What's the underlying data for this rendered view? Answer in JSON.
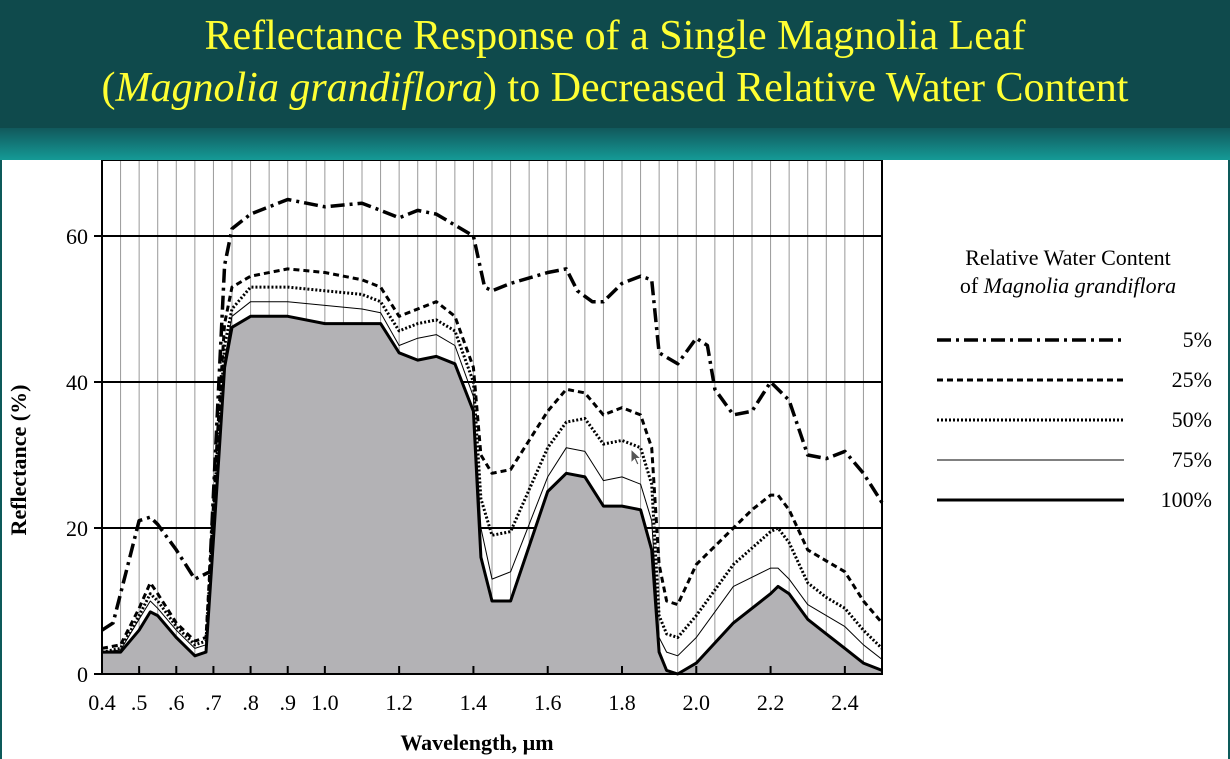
{
  "slide": {
    "title_line1": "Reflectance Response of a Single Magnolia Leaf",
    "title_line2_open": "(",
    "title_line2_italic": "Magnolia grandiflora",
    "title_line2_rest": ") to Decreased Relative Water Content",
    "colors": {
      "title": "#ffff33",
      "background": "#0f4a4c",
      "fill": "#b3b2b5"
    }
  },
  "chart_data": {
    "type": "line",
    "title": "",
    "xlabel": "Wavelength, µm",
    "ylabel": "Reflectance (%)",
    "xlim": [
      0.4,
      2.5
    ],
    "ylim": [
      0,
      69
    ],
    "x_ticks": [
      0.4,
      0.5,
      0.6,
      0.7,
      0.8,
      0.9,
      1.0,
      1.2,
      1.4,
      1.6,
      1.8,
      2.0,
      2.2,
      2.4
    ],
    "x_tick_labels": [
      "0.4",
      ".5",
      ".6",
      ".7",
      ".8",
      ".9",
      "1.0",
      "1.2",
      "1.4",
      "1.6",
      "1.8",
      "2.0",
      "2.2",
      "2.4"
    ],
    "y_ticks": [
      0,
      20,
      40,
      60
    ],
    "y_tick_labels": [
      "0",
      "20",
      "40",
      "60"
    ],
    "grid": {
      "vertical_every_um": 0.05,
      "horizontal": [
        20,
        40,
        60
      ]
    },
    "legend": {
      "title_line1": "Relative Water Content",
      "title_line2_prefix": "of ",
      "title_line2_italic": "Magnolia grandiflora",
      "placement": "right"
    },
    "series": [
      {
        "name": "5%",
        "style": "dash-dot",
        "x": [
          0.4,
          0.43,
          0.47,
          0.5,
          0.53,
          0.55,
          0.6,
          0.65,
          0.69,
          0.71,
          0.73,
          0.75,
          0.8,
          0.9,
          1.0,
          1.1,
          1.15,
          1.2,
          1.25,
          1.3,
          1.35,
          1.4,
          1.43,
          1.45,
          1.5,
          1.6,
          1.65,
          1.68,
          1.72,
          1.75,
          1.8,
          1.85,
          1.88,
          1.9,
          1.95,
          2.0,
          2.03,
          2.05,
          2.1,
          2.15,
          2.2,
          2.25,
          2.3,
          2.35,
          2.4,
          2.45,
          2.5
        ],
        "y": [
          6,
          7,
          15,
          21,
          21.5,
          20.5,
          17,
          13,
          14,
          35,
          56,
          61,
          63,
          65,
          64,
          64.5,
          63.5,
          62.5,
          63.5,
          63,
          61.5,
          60,
          53,
          52.5,
          53.5,
          55,
          55.5,
          52.5,
          51,
          51,
          53.5,
          54.5,
          54,
          44,
          42.5,
          46,
          45,
          39,
          35.5,
          36,
          40,
          37.5,
          30,
          29.5,
          30.5,
          27.5,
          23.5
        ]
      },
      {
        "name": "25%",
        "style": "dashed",
        "x": [
          0.4,
          0.45,
          0.5,
          0.53,
          0.55,
          0.6,
          0.65,
          0.68,
          0.71,
          0.73,
          0.75,
          0.8,
          0.9,
          1.0,
          1.1,
          1.15,
          1.2,
          1.25,
          1.3,
          1.35,
          1.4,
          1.42,
          1.45,
          1.5,
          1.6,
          1.65,
          1.7,
          1.75,
          1.8,
          1.85,
          1.88,
          1.9,
          1.92,
          1.95,
          2.0,
          2.1,
          2.15,
          2.2,
          2.22,
          2.25,
          2.3,
          2.35,
          2.4,
          2.45,
          2.5
        ],
        "y": [
          3.5,
          4,
          9,
          12.5,
          11,
          7,
          4.5,
          5,
          32,
          48,
          53,
          54.5,
          55.5,
          55,
          54,
          53,
          49,
          50,
          51,
          49,
          42,
          30,
          27.5,
          28,
          36,
          39,
          38.5,
          35.5,
          36.5,
          35.5,
          31,
          15,
          10,
          9.5,
          15,
          20,
          22.5,
          24.5,
          24.5,
          22.5,
          17,
          15.5,
          14,
          10,
          7
        ]
      },
      {
        "name": "50%",
        "style": "dotted",
        "x": [
          0.4,
          0.45,
          0.5,
          0.53,
          0.55,
          0.6,
          0.65,
          0.68,
          0.71,
          0.73,
          0.75,
          0.8,
          0.9,
          1.0,
          1.1,
          1.15,
          1.2,
          1.25,
          1.3,
          1.35,
          1.4,
          1.42,
          1.45,
          1.5,
          1.6,
          1.65,
          1.7,
          1.75,
          1.8,
          1.85,
          1.88,
          1.9,
          1.92,
          1.95,
          2.0,
          2.1,
          2.2,
          2.22,
          2.25,
          2.3,
          2.35,
          2.4,
          2.45,
          2.5
        ],
        "y": [
          3,
          3.5,
          8,
          11,
          10,
          6.5,
          4,
          4.5,
          30,
          45,
          50,
          53,
          53,
          52.5,
          52,
          51,
          47,
          48,
          48.5,
          47,
          40,
          24,
          19,
          19.5,
          31,
          34.5,
          35,
          31.5,
          32,
          31,
          26,
          8,
          5.5,
          5,
          8,
          15,
          19.5,
          20,
          18,
          12.5,
          10.5,
          9,
          6,
          3.5
        ]
      },
      {
        "name": "75%",
        "style": "thin",
        "x": [
          0.4,
          0.45,
          0.5,
          0.53,
          0.55,
          0.6,
          0.65,
          0.68,
          0.71,
          0.73,
          0.75,
          0.8,
          0.9,
          1.0,
          1.1,
          1.15,
          1.2,
          1.25,
          1.3,
          1.35,
          1.4,
          1.42,
          1.45,
          1.5,
          1.6,
          1.65,
          1.7,
          1.75,
          1.8,
          1.85,
          1.88,
          1.9,
          1.92,
          1.95,
          2.0,
          2.1,
          2.2,
          2.22,
          2.25,
          2.3,
          2.35,
          2.4,
          2.45,
          2.5
        ],
        "y": [
          3,
          3.3,
          7.5,
          10,
          9,
          6,
          3.5,
          4,
          28,
          43,
          49,
          51,
          51,
          50.5,
          50,
          49.5,
          45,
          46,
          46.5,
          45,
          38,
          20,
          13,
          14,
          27,
          31,
          30.5,
          26.5,
          27,
          26,
          21,
          5,
          3,
          2.5,
          5,
          12,
          14.5,
          14.5,
          13,
          9.5,
          8,
          6.5,
          4,
          2
        ]
      },
      {
        "name": "100%",
        "style": "thick-filled",
        "x": [
          0.4,
          0.45,
          0.5,
          0.53,
          0.55,
          0.6,
          0.65,
          0.68,
          0.71,
          0.73,
          0.75,
          0.8,
          0.9,
          1.0,
          1.1,
          1.15,
          1.2,
          1.25,
          1.3,
          1.35,
          1.4,
          1.42,
          1.45,
          1.5,
          1.6,
          1.65,
          1.7,
          1.75,
          1.8,
          1.85,
          1.88,
          1.9,
          1.92,
          1.95,
          2.0,
          2.1,
          2.2,
          2.22,
          2.25,
          2.3,
          2.35,
          2.4,
          2.45,
          2.5
        ],
        "y": [
          3,
          3,
          6,
          8.5,
          8,
          5,
          2.5,
          3,
          26,
          42,
          47.5,
          49,
          49,
          48,
          48,
          48,
          44,
          43,
          43.5,
          42.5,
          36,
          16,
          10,
          10,
          25,
          27.5,
          27,
          23,
          23,
          22.5,
          17,
          3,
          0.5,
          0,
          1.5,
          7,
          11,
          12,
          11,
          7.5,
          5.5,
          3.5,
          1.5,
          0.5
        ]
      }
    ]
  }
}
